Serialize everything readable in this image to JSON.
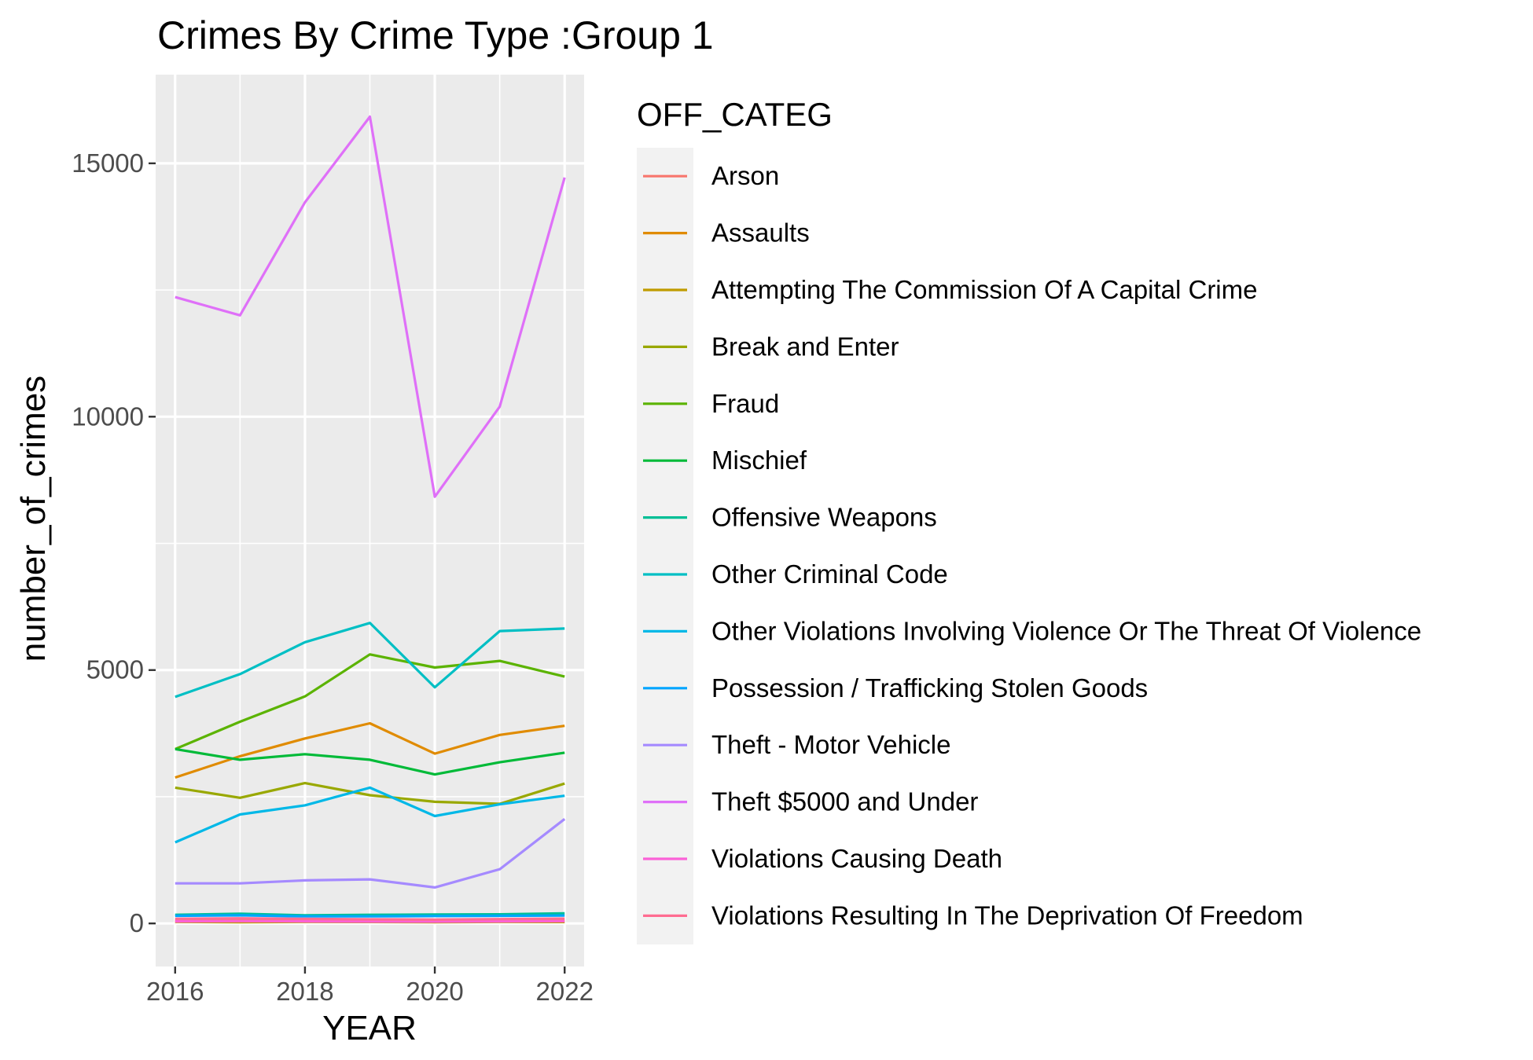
{
  "chart_data": {
    "type": "line",
    "title": "Crimes By Crime Type :Group 1",
    "xlabel": "YEAR",
    "ylabel": "number_of_crimes",
    "x": [
      2016,
      2017,
      2018,
      2019,
      2020,
      2021,
      2022
    ],
    "x_ticks": [
      "2016",
      "2018",
      "2020",
      "2022"
    ],
    "y_ticks": [
      "0",
      "5000",
      "10000",
      "15000"
    ],
    "xlim": [
      2015.7,
      2022.3
    ],
    "ylim": [
      -850,
      16750
    ],
    "grid": true,
    "legend_title": "OFF_CATEG",
    "legend_position": "right",
    "series": [
      {
        "name": "Arson",
        "color": "#F8766D",
        "values": [
          60,
          70,
          50,
          55,
          50,
          45,
          50
        ]
      },
      {
        "name": "Assaults",
        "color": "#E08B00",
        "values": [
          2880,
          3300,
          3650,
          3950,
          3350,
          3720,
          3900
        ]
      },
      {
        "name": "Attempting The Commission Of A Capital Crime",
        "color": "#C09B00",
        "values": [
          30,
          25,
          30,
          28,
          25,
          30,
          28
        ]
      },
      {
        "name": "Break and Enter",
        "color": "#99A800",
        "values": [
          2680,
          2480,
          2770,
          2530,
          2400,
          2360,
          2760
        ]
      },
      {
        "name": "Fraud",
        "color": "#5BB300",
        "values": [
          3440,
          3980,
          4480,
          5310,
          5050,
          5180,
          4870
        ]
      },
      {
        "name": "Mischief",
        "color": "#00BA38",
        "values": [
          3440,
          3230,
          3340,
          3230,
          2940,
          3180,
          3370
        ]
      },
      {
        "name": "Offensive Weapons",
        "color": "#00BF96",
        "values": [
          170,
          190,
          160,
          170,
          175,
          180,
          200
        ]
      },
      {
        "name": "Other Criminal Code",
        "color": "#00BFC4",
        "values": [
          4470,
          4920,
          5550,
          5930,
          4660,
          5770,
          5820
        ]
      },
      {
        "name": "Other Violations Involving Violence Or The Threat Of Violence",
        "color": "#00B8E7",
        "values": [
          1600,
          2150,
          2330,
          2680,
          2120,
          2350,
          2520
        ]
      },
      {
        "name": "Possession / Trafficking Stolen Goods",
        "color": "#00A5FF",
        "values": [
          150,
          160,
          140,
          140,
          145,
          150,
          155
        ]
      },
      {
        "name": "Theft - Motor Vehicle",
        "color": "#A58AFF",
        "values": [
          790,
          790,
          850,
          870,
          710,
          1070,
          2060
        ]
      },
      {
        "name": "Theft $5000 and Under",
        "color": "#DF70F8",
        "values": [
          12360,
          12000,
          14230,
          15920,
          8420,
          10200,
          14720
        ]
      },
      {
        "name": "Violations Causing Death",
        "color": "#FB61D7",
        "values": [
          40,
          45,
          40,
          35,
          35,
          40,
          45
        ]
      },
      {
        "name": "Violations Resulting In The Deprivation Of Freedom",
        "color": "#FF6C91",
        "values": [
          90,
          100,
          90,
          80,
          75,
          85,
          95
        ]
      }
    ]
  }
}
